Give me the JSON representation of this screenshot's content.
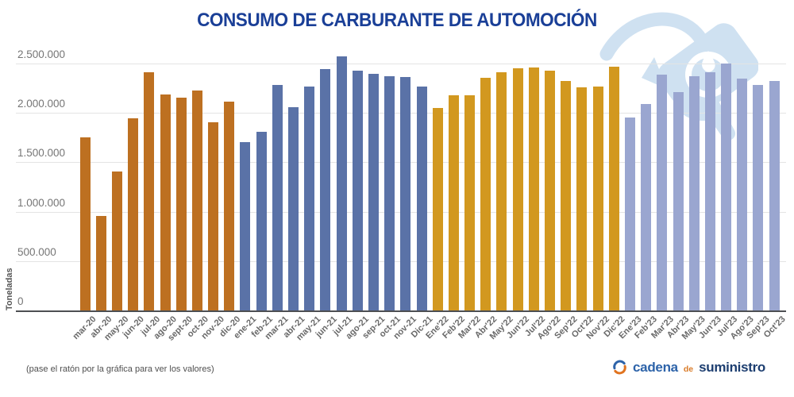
{
  "title": "CONSUMO DE CARBURANTE DE AUTOMOCIÓN",
  "footer": {
    "note": "(pase el ratón por la gráfica para ver los valores)"
  },
  "logo": {
    "part1": "cadena",
    "part2": "de",
    "part3": "suministro"
  },
  "chart_data": {
    "type": "bar",
    "title": "CONSUMO DE CARBURANTE DE AUTOMOCIÓN",
    "ylabel": "Toneladas",
    "ylim": [
      0,
      2500000
    ],
    "grid": true,
    "legend": "none",
    "yticks": [
      {
        "value": 0,
        "label": "0"
      },
      {
        "value": 500000,
        "label": "500.000"
      },
      {
        "value": 1000000,
        "label": "1.000.000"
      },
      {
        "value": 1500000,
        "label": "1.500.000"
      },
      {
        "value": 2000000,
        "label": "2.000.000"
      },
      {
        "value": 2500000,
        "label": "2.500.000"
      }
    ],
    "categories": [
      "mar-20",
      "abr-20",
      "may-20",
      "jun-20",
      "jul-20",
      "ago-20",
      "sept-20",
      "oct-20",
      "nov-20",
      "dic-20",
      "ene-21",
      "feb-21",
      "mar-21",
      "abr-21",
      "may-21",
      "jun-21",
      "jul-21",
      "ago-21",
      "sep-21",
      "oct-21",
      "nov-21",
      "Dic-21",
      "Ene'22",
      "Feb'22",
      "Mar'22",
      "Abr'22",
      "May'22",
      "Jun'22",
      "Jul'22",
      "Ago'22",
      "Sep'22",
      "Oct'22",
      "Nov'22",
      "Dic'22",
      "Ene'23",
      "Feb'23",
      "Mar'23",
      "Abr'23",
      "May'23",
      "Jun'23",
      "Jul'23",
      "Ago'23",
      "Sep'23",
      "Oct'23"
    ],
    "values": [
      1750000,
      960000,
      1410000,
      1945000,
      2410000,
      2190000,
      2155000,
      2225000,
      1905000,
      2115000,
      1705000,
      1810000,
      2285000,
      2060000,
      2265000,
      2440000,
      2575000,
      2425000,
      2395000,
      2375000,
      2360000,
      2270000,
      2050000,
      2180000,
      2180000,
      2355000,
      2410000,
      2455000,
      2460000,
      2430000,
      2325000,
      2260000,
      2265000,
      2465000,
      1955000,
      2090000,
      2390000,
      2210000,
      2370000,
      2415000,
      2500000,
      2350000,
      2285000,
      2320000
    ],
    "groups": [
      "2020",
      "2020",
      "2020",
      "2020",
      "2020",
      "2020",
      "2020",
      "2020",
      "2020",
      "2020",
      "2021",
      "2021",
      "2021",
      "2021",
      "2021",
      "2021",
      "2021",
      "2021",
      "2021",
      "2021",
      "2021",
      "2021",
      "2022",
      "2022",
      "2022",
      "2022",
      "2022",
      "2022",
      "2022",
      "2022",
      "2022",
      "2022",
      "2022",
      "2022",
      "2023",
      "2023",
      "2023",
      "2023",
      "2023",
      "2023",
      "2023",
      "2023",
      "2023",
      "2023"
    ],
    "group_colors": {
      "2020": "#bd7021",
      "2021": "#5a72a7",
      "2022": "#d2981f",
      "2023": "#9aa6d0"
    }
  },
  "colors": {
    "title": "#1a3f97",
    "axis_text": "#757575",
    "gridline": "#e4e4e4",
    "watermark": "#cfe1f1"
  }
}
